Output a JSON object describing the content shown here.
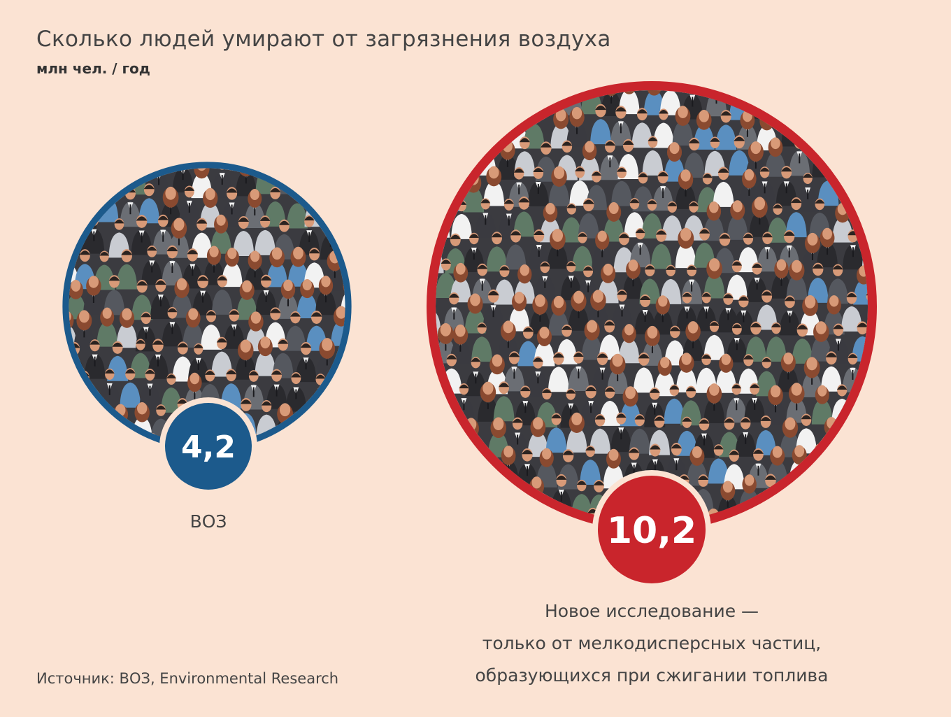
{
  "header": {
    "title": "Сколько людей умирают от загрязнения воздуха",
    "subtitle": "млн чел. / год"
  },
  "footer": {
    "source": "Источник: ВОЗ, Environmental Research"
  },
  "chart_data": {
    "type": "bubble",
    "title": "Сколько людей умирают от загрязнения воздуха",
    "unit": "млн чел. / год",
    "series": [
      {
        "label": "4,2",
        "value": 4.2,
        "caption": [
          "ВОЗ"
        ],
        "color": "#1c5a8c"
      },
      {
        "label": "10,2",
        "value": 10.2,
        "caption": [
          "Новое исследование —",
          "только от мелкодисперсных частиц,",
          "образующихся при сжигании топлива"
        ],
        "color": "#c9252c"
      }
    ],
    "fill_pattern": "crowd-of-people",
    "legend": "none",
    "grid": false
  },
  "palette": {
    "background": "#fbe3d3",
    "crowd_dark": "#2a2a2e",
    "crowd_mid": "#6b6e74",
    "crowd_light": "#c9ccd2",
    "shirt": "#f2f2f2",
    "skin": "#d89a78",
    "hair": "#8a4a30",
    "accent_blue": "#5a8fc0",
    "accent_green": "#5f7a66"
  }
}
